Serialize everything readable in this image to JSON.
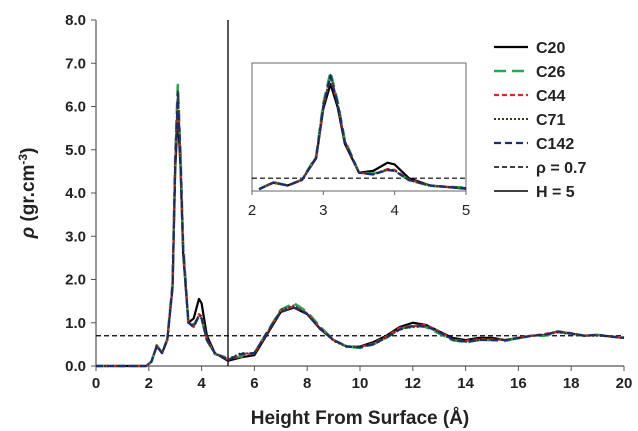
{
  "chart_data": {
    "type": "line",
    "xlabel": "Height From Surface (Å)",
    "ylabel_symbol": "ρ",
    "ylabel_unit": " (gr.cm",
    "ylabel_sup": "-3",
    "ylabel_close": ")",
    "xlim": [
      0,
      20
    ],
    "ylim": [
      0,
      8
    ],
    "x_ticks": [
      "0",
      "2",
      "4",
      "6",
      "8",
      "10",
      "12",
      "14",
      "16",
      "18",
      "20"
    ],
    "y_ticks": [
      "0.0",
      "1.0",
      "2.0",
      "3.0",
      "4.0",
      "5.0",
      "6.0",
      "7.0",
      "8.0"
    ],
    "grid": false,
    "legend_position": "right",
    "reference_lines": [
      {
        "name": "ρ = 0.7",
        "orientation": "horizontal",
        "value": 0.7,
        "style": "dashed",
        "color": "#000000"
      },
      {
        "name": "H = 5",
        "orientation": "vertical",
        "value": 5,
        "style": "solid",
        "color": "#000000"
      }
    ],
    "series": [
      {
        "name": "C20",
        "color": "#000000",
        "dash": "solid",
        "width": 2.2,
        "x": [
          0,
          1.9,
          2.1,
          2.3,
          2.5,
          2.7,
          2.9,
          3.0,
          3.1,
          3.2,
          3.3,
          3.5,
          3.7,
          3.9,
          4.0,
          4.2,
          4.5,
          5.0,
          5.5,
          6.0,
          6.5,
          7.0,
          7.5,
          8.0,
          8.5,
          9.0,
          9.5,
          10.0,
          10.5,
          11.0,
          11.5,
          12.0,
          12.5,
          13.0,
          13.5,
          14.0,
          14.5,
          15.0,
          15.5,
          16.0,
          16.5,
          17.0,
          17.5,
          18.0,
          18.5,
          19.0,
          19.5,
          20.0
        ],
        "y": [
          0,
          0,
          0.1,
          0.45,
          0.3,
          0.6,
          1.8,
          4.5,
          5.85,
          4.6,
          2.6,
          1.0,
          1.1,
          1.55,
          1.45,
          0.7,
          0.3,
          0.12,
          0.2,
          0.25,
          0.75,
          1.25,
          1.35,
          1.2,
          0.85,
          0.6,
          0.45,
          0.45,
          0.55,
          0.7,
          0.9,
          1.0,
          0.95,
          0.8,
          0.65,
          0.6,
          0.65,
          0.65,
          0.6,
          0.65,
          0.7,
          0.72,
          0.8,
          0.75,
          0.7,
          0.72,
          0.68,
          0.65
        ]
      },
      {
        "name": "C26",
        "color": "#22aa55",
        "dash": "12,6",
        "width": 2.6,
        "x": [
          0,
          1.9,
          2.1,
          2.3,
          2.5,
          2.7,
          2.9,
          3.0,
          3.1,
          3.2,
          3.3,
          3.5,
          3.7,
          3.9,
          4.0,
          4.2,
          4.5,
          5.0,
          5.5,
          6.0,
          6.5,
          7.0,
          7.5,
          8.0,
          8.5,
          9.0,
          9.5,
          10.0,
          10.5,
          11.0,
          11.5,
          12.0,
          12.5,
          13.0,
          13.5,
          14.0,
          14.5,
          15.0,
          15.5,
          16.0,
          16.5,
          17.0,
          17.5,
          18.0,
          18.5,
          19.0,
          19.5,
          20.0
        ],
        "y": [
          0,
          0,
          0.1,
          0.48,
          0.3,
          0.62,
          1.9,
          4.8,
          6.5,
          4.9,
          2.8,
          1.0,
          0.95,
          1.15,
          1.1,
          0.6,
          0.28,
          0.18,
          0.22,
          0.3,
          0.8,
          1.3,
          1.45,
          1.25,
          0.9,
          0.6,
          0.45,
          0.42,
          0.5,
          0.65,
          0.85,
          0.95,
          0.9,
          0.75,
          0.6,
          0.55,
          0.6,
          0.6,
          0.58,
          0.65,
          0.7,
          0.7,
          0.78,
          0.75,
          0.7,
          0.72,
          0.68,
          0.65
        ]
      },
      {
        "name": "C44",
        "color": "#e8231e",
        "dash": "5,3",
        "width": 2.2,
        "x": [
          0,
          1.9,
          2.1,
          2.3,
          2.5,
          2.7,
          2.9,
          3.0,
          3.1,
          3.2,
          3.3,
          3.5,
          3.7,
          3.9,
          4.0,
          4.2,
          4.5,
          5.0,
          5.5,
          6.0,
          6.5,
          7.0,
          7.5,
          8.0,
          8.5,
          9.0,
          9.5,
          10.0,
          10.5,
          11.0,
          11.5,
          12.0,
          12.5,
          13.0,
          13.5,
          14.0,
          14.5,
          15.0,
          15.5,
          16.0,
          16.5,
          17.0,
          17.5,
          18.0,
          18.5,
          19.0,
          19.5,
          20.0
        ],
        "y": [
          0,
          0,
          0.1,
          0.47,
          0.3,
          0.6,
          1.85,
          4.7,
          6.2,
          4.8,
          2.7,
          1.0,
          0.9,
          1.2,
          1.15,
          0.62,
          0.3,
          0.15,
          0.25,
          0.3,
          0.78,
          1.28,
          1.38,
          1.22,
          0.88,
          0.6,
          0.46,
          0.44,
          0.52,
          0.68,
          0.88,
          0.92,
          0.95,
          0.8,
          0.62,
          0.58,
          0.62,
          0.62,
          0.6,
          0.66,
          0.7,
          0.74,
          0.8,
          0.76,
          0.7,
          0.72,
          0.68,
          0.66
        ]
      },
      {
        "name": "C71",
        "color": "#3a3a10",
        "dash": "2,2",
        "width": 2.0,
        "x": [
          0,
          1.9,
          2.1,
          2.3,
          2.5,
          2.7,
          2.9,
          3.0,
          3.1,
          3.2,
          3.3,
          3.5,
          3.7,
          3.9,
          4.0,
          4.2,
          4.5,
          5.0,
          5.5,
          6.0,
          6.5,
          7.0,
          7.5,
          8.0,
          8.5,
          9.0,
          9.5,
          10.0,
          10.5,
          11.0,
          11.5,
          12.0,
          12.5,
          13.0,
          13.5,
          14.0,
          14.5,
          15.0,
          15.5,
          16.0,
          16.5,
          17.0,
          17.5,
          18.0,
          18.5,
          19.0,
          19.5,
          20.0
        ],
        "y": [
          0,
          0,
          0.1,
          0.46,
          0.3,
          0.6,
          1.85,
          4.6,
          6.35,
          4.75,
          2.7,
          1.0,
          0.92,
          1.18,
          1.12,
          0.6,
          0.28,
          0.16,
          0.3,
          0.28,
          0.76,
          1.3,
          1.4,
          1.2,
          0.86,
          0.58,
          0.44,
          0.44,
          0.5,
          0.66,
          0.86,
          0.9,
          0.92,
          0.78,
          0.6,
          0.56,
          0.6,
          0.62,
          0.6,
          0.64,
          0.7,
          0.72,
          0.78,
          0.74,
          0.7,
          0.7,
          0.68,
          0.64
        ]
      },
      {
        "name": "C142",
        "color": "#1a2b7a",
        "dash": "7,4",
        "width": 2.2,
        "x": [
          0,
          1.9,
          2.1,
          2.3,
          2.5,
          2.7,
          2.9,
          3.0,
          3.1,
          3.2,
          3.3,
          3.5,
          3.7,
          3.9,
          4.0,
          4.2,
          4.5,
          5.0,
          5.5,
          6.0,
          6.5,
          7.0,
          7.5,
          8.0,
          8.5,
          9.0,
          9.5,
          10.0,
          10.5,
          11.0,
          11.5,
          12.0,
          12.5,
          13.0,
          13.5,
          14.0,
          14.5,
          15.0,
          15.5,
          16.0,
          16.5,
          17.0,
          17.5,
          18.0,
          18.5,
          19.0,
          19.5,
          20.0
        ],
        "y": [
          0,
          0,
          0.1,
          0.47,
          0.3,
          0.6,
          1.85,
          4.65,
          6.3,
          4.8,
          2.72,
          1.0,
          0.9,
          1.15,
          1.1,
          0.6,
          0.3,
          0.14,
          0.28,
          0.3,
          0.8,
          1.25,
          1.35,
          1.2,
          0.86,
          0.6,
          0.45,
          0.43,
          0.5,
          0.66,
          0.84,
          0.92,
          0.92,
          0.78,
          0.62,
          0.56,
          0.6,
          0.6,
          0.6,
          0.64,
          0.7,
          0.72,
          0.8,
          0.75,
          0.7,
          0.72,
          0.68,
          0.66
        ]
      }
    ],
    "inset": {
      "xlim": [
        2,
        5
      ],
      "ylim": [
        0,
        7
      ],
      "x_ticks": [
        "2",
        "3",
        "4",
        "5"
      ],
      "reference_value": 0.7
    }
  }
}
